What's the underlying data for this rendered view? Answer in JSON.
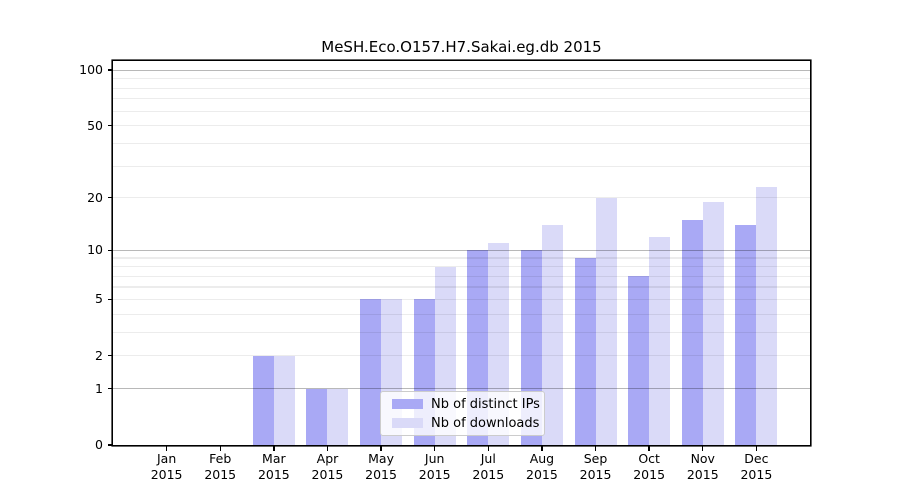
{
  "chart_data": {
    "type": "bar",
    "title": "MeSH.Eco.O157.H7.Sakai.eg.db 2015",
    "year": "2015",
    "categories": [
      "Jan",
      "Feb",
      "Mar",
      "Apr",
      "May",
      "Jun",
      "Jul",
      "Aug",
      "Sep",
      "Oct",
      "Nov",
      "Dec"
    ],
    "series": [
      {
        "name": "Nb of distinct IPs",
        "color": "#a9a9f5",
        "values": [
          0,
          0,
          2,
          1,
          5,
          5,
          10,
          10,
          9,
          7,
          15,
          14
        ]
      },
      {
        "name": "Nb of downloads",
        "color": "#dadaf8",
        "values": [
          0,
          0,
          2,
          1,
          5,
          8,
          11,
          14,
          20,
          12,
          19,
          23
        ]
      }
    ],
    "xlabel": "",
    "ylabel": "",
    "yscale": "log1p",
    "ylim": [
      0,
      112
    ],
    "yticks": [
      0,
      1,
      2,
      5,
      10,
      20,
      50,
      100
    ],
    "major_gridlines": [
      1,
      10,
      100
    ],
    "minor_gridlines": [
      2,
      3,
      4,
      5,
      6,
      7,
      8,
      9,
      20,
      30,
      40,
      50,
      60,
      70,
      80,
      90
    ],
    "grid": true,
    "legend_position": "lower-center",
    "colors": {
      "background": "#ffffff",
      "text": "#000000",
      "axis": "#000000",
      "major_grid": "#b8b8b8",
      "minor_grid": "#ececec",
      "legend_border": "#cccccc"
    }
  }
}
